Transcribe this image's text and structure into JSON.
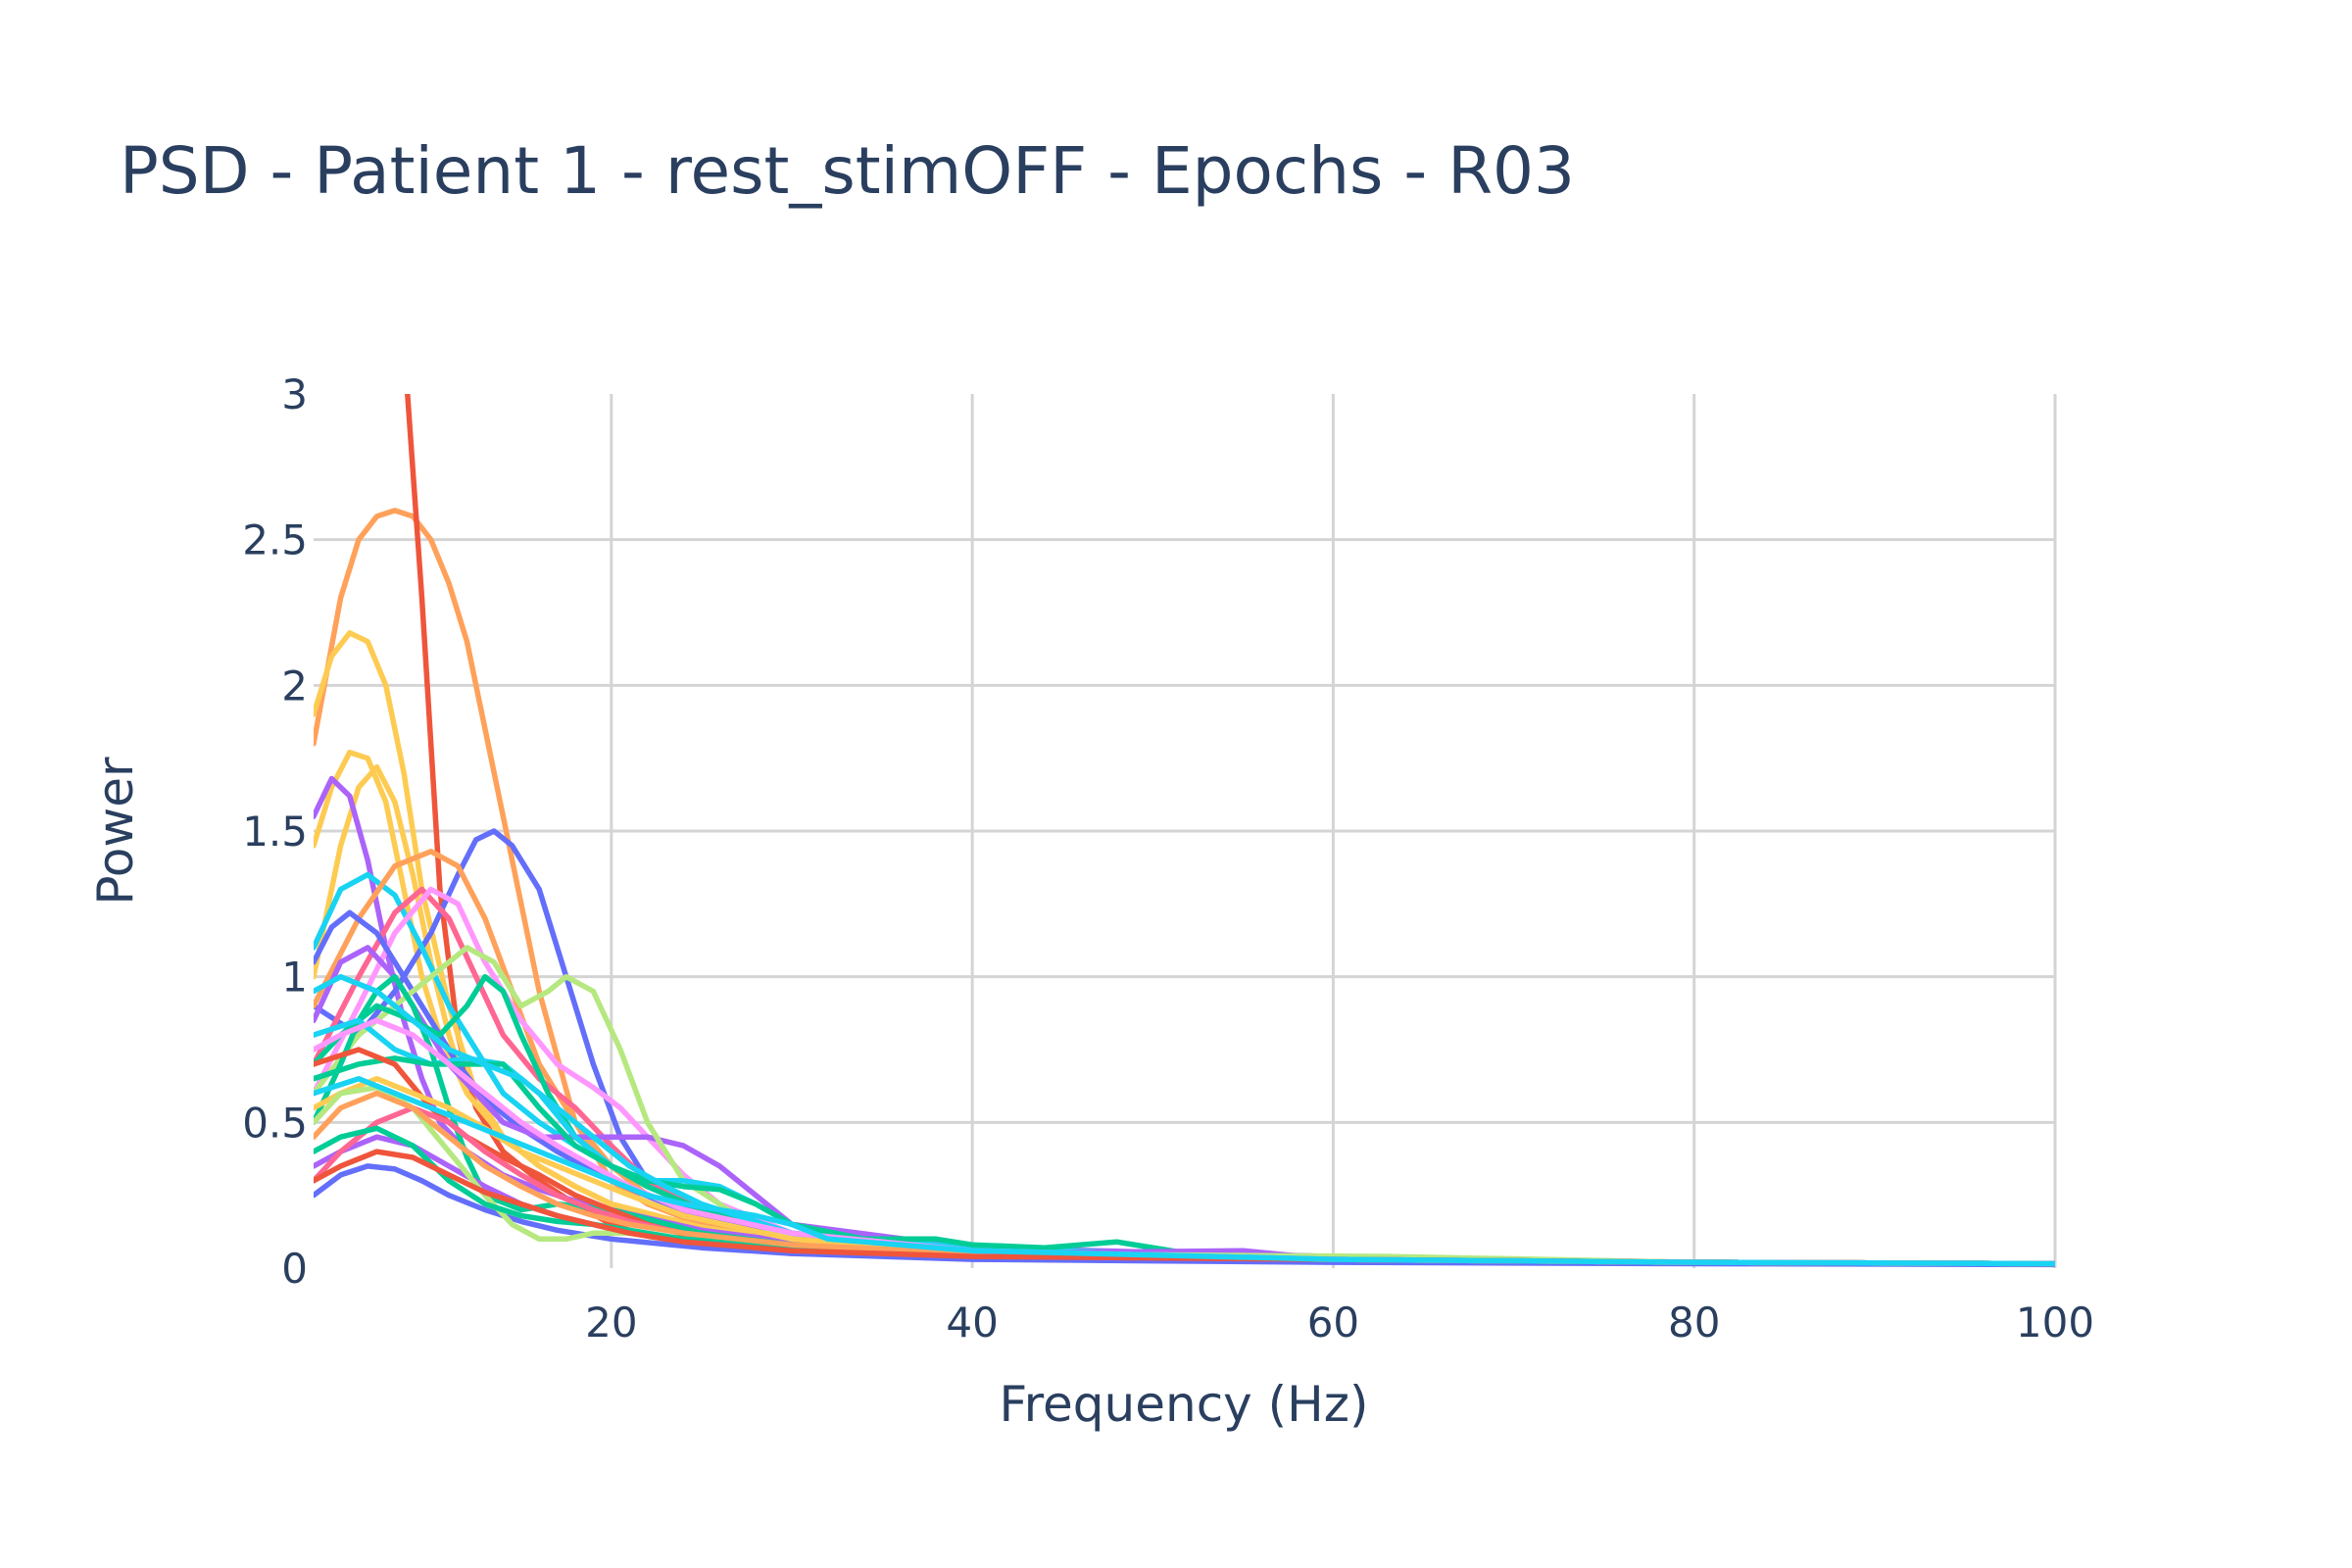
{
  "chart_data": {
    "type": "line",
    "title": "PSD - Patient 1 - rest_stimOFF - Epochs - R03",
    "xlabel": "Frequency (Hz)",
    "ylabel": "Power",
    "xlim": [
      3.5,
      100
    ],
    "ylim": [
      0,
      3
    ],
    "xticks": [
      20,
      40,
      60,
      80,
      100
    ],
    "xtick_labels": [
      "20",
      "40",
      "60",
      "80",
      "100"
    ],
    "yticks": [
      0,
      0.5,
      1,
      1.5,
      2,
      2.5,
      3
    ],
    "ytick_labels": [
      "0",
      "0.5",
      "1",
      "1.5",
      "2",
      "2.5",
      "3"
    ],
    "grid": true,
    "legend": "none",
    "palette": [
      "#636efa",
      "#EF553B",
      "#00cc96",
      "#ab63fa",
      "#FFA15A",
      "#19d3f3",
      "#FF6692",
      "#B6E880",
      "#FF97FF",
      "#FECB52"
    ],
    "series": [
      {
        "color": "#FFA15A",
        "x": [
          3.5,
          5,
          6,
          7,
          8,
          9,
          10,
          11,
          12,
          14,
          16,
          18,
          20,
          22,
          25,
          30,
          40,
          60,
          80,
          100
        ],
        "y": [
          1.8,
          2.3,
          2.5,
          2.58,
          2.6,
          2.58,
          2.5,
          2.35,
          2.15,
          1.55,
          0.95,
          0.5,
          0.3,
          0.22,
          0.15,
          0.09,
          0.05,
          0.03,
          0.02,
          0.015
        ]
      },
      {
        "color": "#EF553B",
        "x": [
          8.7,
          9.5,
          10.5,
          11.5,
          12.5,
          14,
          16,
          18,
          20,
          22,
          25,
          30,
          40,
          60,
          80,
          100
        ],
        "y": [
          3.0,
          2.3,
          1.3,
          0.8,
          0.55,
          0.4,
          0.3,
          0.22,
          0.15,
          0.11,
          0.08,
          0.05,
          0.04,
          0.03,
          0.02,
          0.015
        ]
      },
      {
        "color": "#FECB52",
        "x": [
          3.5,
          4.5,
          5.5,
          6.5,
          7.5,
          8.5,
          9.5,
          11,
          12.5,
          14,
          16,
          18,
          20,
          25,
          30,
          40,
          60,
          80,
          100
        ],
        "y": [
          1.9,
          2.1,
          2.18,
          2.15,
          2.0,
          1.7,
          1.3,
          0.9,
          0.6,
          0.45,
          0.35,
          0.28,
          0.22,
          0.14,
          0.09,
          0.05,
          0.03,
          0.02,
          0.015
        ]
      },
      {
        "color": "#FECB52",
        "x": [
          3.5,
          4.5,
          5.5,
          6.5,
          7.5,
          8.5,
          9.5,
          10.5,
          12,
          14,
          16,
          18,
          20,
          25,
          30,
          40,
          60,
          80,
          100
        ],
        "y": [
          1.45,
          1.65,
          1.77,
          1.75,
          1.6,
          1.3,
          1.0,
          0.8,
          0.6,
          0.45,
          0.35,
          0.28,
          0.22,
          0.14,
          0.09,
          0.05,
          0.03,
          0.02,
          0.015
        ]
      },
      {
        "color": "#FECB52",
        "x": [
          3.5,
          5,
          6,
          7,
          8,
          9,
          10,
          11,
          12,
          14,
          16,
          18,
          20,
          25,
          30,
          40,
          60,
          80,
          100
        ],
        "y": [
          1.0,
          1.45,
          1.65,
          1.72,
          1.6,
          1.35,
          1.05,
          0.8,
          0.6,
          0.45,
          0.35,
          0.28,
          0.22,
          0.14,
          0.09,
          0.05,
          0.03,
          0.02,
          0.015
        ]
      },
      {
        "color": "#ab63fa",
        "x": [
          3.5,
          4.5,
          5.5,
          6.5,
          7.5,
          8.5,
          9.5,
          10.5,
          12,
          14,
          16,
          18,
          20,
          25,
          30,
          40,
          60,
          80,
          100
        ],
        "y": [
          1.55,
          1.68,
          1.62,
          1.4,
          1.1,
          0.85,
          0.65,
          0.5,
          0.4,
          0.32,
          0.27,
          0.23,
          0.2,
          0.13,
          0.09,
          0.05,
          0.03,
          0.02,
          0.015
        ]
      },
      {
        "color": "#636efa",
        "x": [
          3.5,
          6,
          8,
          10,
          11.5,
          12.5,
          13.5,
          14.5,
          16,
          17.5,
          19,
          20.5,
          22,
          25,
          30,
          40,
          60,
          80,
          100
        ],
        "y": [
          0.9,
          0.8,
          0.95,
          1.15,
          1.35,
          1.47,
          1.5,
          1.45,
          1.3,
          1.0,
          0.7,
          0.45,
          0.3,
          0.18,
          0.1,
          0.05,
          0.03,
          0.02,
          0.015
        ]
      },
      {
        "color": "#19d3f3",
        "x": [
          3.5,
          5,
          6.5,
          8,
          9.5,
          11,
          12.5,
          14,
          16,
          18,
          20,
          22,
          25,
          30,
          40,
          60,
          80,
          100
        ],
        "y": [
          1.1,
          1.3,
          1.35,
          1.28,
          1.1,
          0.9,
          0.75,
          0.6,
          0.5,
          0.42,
          0.35,
          0.28,
          0.2,
          0.12,
          0.06,
          0.03,
          0.02,
          0.015
        ]
      },
      {
        "color": "#FFA15A",
        "x": [
          3.5,
          6,
          8,
          10,
          11.5,
          13,
          14.5,
          16,
          18,
          20,
          22,
          25,
          30,
          40,
          60,
          80,
          100
        ],
        "y": [
          0.9,
          1.2,
          1.38,
          1.43,
          1.38,
          1.2,
          0.95,
          0.7,
          0.5,
          0.35,
          0.25,
          0.17,
          0.1,
          0.05,
          0.03,
          0.02,
          0.015
        ]
      },
      {
        "color": "#FF6692",
        "x": [
          3.5,
          6,
          8,
          9.5,
          11,
          12.5,
          14,
          16,
          18,
          20,
          22,
          25,
          30,
          40,
          60,
          80,
          100
        ],
        "y": [
          0.7,
          1.0,
          1.22,
          1.3,
          1.2,
          1.0,
          0.8,
          0.65,
          0.55,
          0.42,
          0.3,
          0.2,
          0.12,
          0.06,
          0.03,
          0.02,
          0.015
        ]
      },
      {
        "color": "#FF97FF",
        "x": [
          3.5,
          6,
          8,
          10,
          11.5,
          13,
          15,
          17,
          19,
          20.5,
          22,
          24,
          26,
          30,
          40,
          60,
          80,
          100
        ],
        "y": [
          0.6,
          0.9,
          1.15,
          1.3,
          1.25,
          1.05,
          0.85,
          0.7,
          0.62,
          0.55,
          0.45,
          0.32,
          0.22,
          0.12,
          0.06,
          0.03,
          0.02,
          0.015
        ]
      },
      {
        "color": "#636efa",
        "x": [
          3.5,
          4.5,
          5.5,
          7,
          8.5,
          10,
          11.5,
          13,
          15,
          17,
          20,
          25,
          30,
          40,
          60,
          80,
          100
        ],
        "y": [
          1.05,
          1.17,
          1.22,
          1.15,
          1.0,
          0.85,
          0.7,
          0.58,
          0.48,
          0.4,
          0.3,
          0.17,
          0.1,
          0.05,
          0.03,
          0.02,
          0.015
        ]
      },
      {
        "color": "#ab63fa",
        "x": [
          3.5,
          5,
          6.5,
          8,
          9.5,
          11,
          12.5,
          14,
          16,
          18,
          20,
          22,
          24,
          26,
          28,
          30,
          40,
          60,
          80,
          100
        ],
        "y": [
          0.85,
          1.05,
          1.1,
          1.0,
          0.85,
          0.7,
          0.6,
          0.5,
          0.45,
          0.45,
          0.45,
          0.45,
          0.42,
          0.35,
          0.25,
          0.15,
          0.07,
          0.04,
          0.02,
          0.015
        ]
      },
      {
        "color": "#B6E880",
        "x": [
          3.5,
          6,
          8,
          10,
          12,
          13.5,
          15,
          16.5,
          17.5,
          19,
          20.5,
          22,
          24,
          27,
          30,
          40,
          60,
          80,
          100
        ],
        "y": [
          0.6,
          0.8,
          0.9,
          1.0,
          1.1,
          1.05,
          0.9,
          0.95,
          1.0,
          0.95,
          0.75,
          0.5,
          0.3,
          0.18,
          0.1,
          0.05,
          0.03,
          0.02,
          0.015
        ]
      },
      {
        "color": "#00cc96",
        "x": [
          3.5,
          5,
          7,
          9,
          10.5,
          12,
          13,
          14,
          15,
          16.5,
          18,
          20,
          22,
          25,
          30,
          40,
          60,
          80,
          100
        ],
        "y": [
          0.7,
          0.8,
          0.9,
          0.85,
          0.8,
          0.9,
          1.0,
          0.95,
          0.8,
          0.6,
          0.45,
          0.35,
          0.28,
          0.2,
          0.12,
          0.06,
          0.03,
          0.02,
          0.015
        ]
      },
      {
        "color": "#00cc96",
        "x": [
          3.5,
          5,
          6,
          7,
          8,
          9,
          10,
          11,
          12,
          13,
          15,
          17,
          20,
          25,
          30,
          40,
          60,
          80,
          100
        ],
        "y": [
          0.5,
          0.7,
          0.85,
          0.95,
          1.0,
          0.9,
          0.75,
          0.55,
          0.38,
          0.25,
          0.2,
          0.22,
          0.2,
          0.12,
          0.08,
          0.04,
          0.03,
          0.02,
          0.015
        ]
      },
      {
        "color": "#19d3f3",
        "x": [
          3.5,
          6,
          8,
          10,
          12,
          14,
          16,
          18,
          20,
          22,
          24,
          26,
          28,
          30,
          34,
          40,
          60,
          80,
          100
        ],
        "y": [
          0.8,
          0.85,
          0.75,
          0.7,
          0.72,
          0.7,
          0.6,
          0.45,
          0.35,
          0.3,
          0.3,
          0.28,
          0.22,
          0.15,
          0.1,
          0.07,
          0.03,
          0.02,
          0.015
        ]
      },
      {
        "color": "#00cc96",
        "x": [
          3.5,
          6,
          8,
          10,
          12,
          14,
          16,
          18,
          20,
          22,
          24,
          26,
          28,
          30,
          34,
          38,
          40,
          44,
          48,
          52,
          60,
          80,
          100
        ],
        "y": [
          0.65,
          0.7,
          0.72,
          0.7,
          0.7,
          0.7,
          0.55,
          0.42,
          0.35,
          0.3,
          0.28,
          0.27,
          0.22,
          0.15,
          0.1,
          0.1,
          0.08,
          0.07,
          0.09,
          0.05,
          0.03,
          0.02,
          0.015
        ]
      },
      {
        "color": "#EF553B",
        "x": [
          3.5,
          6,
          8,
          10,
          12,
          14,
          16,
          18,
          20,
          22,
          25,
          30,
          40,
          60,
          80,
          100
        ],
        "y": [
          0.7,
          0.75,
          0.7,
          0.55,
          0.45,
          0.38,
          0.32,
          0.25,
          0.2,
          0.15,
          0.1,
          0.06,
          0.04,
          0.03,
          0.02,
          0.015
        ]
      },
      {
        "color": "#636efa",
        "x": [
          3.5,
          5,
          6.5,
          8,
          9.5,
          11,
          13,
          15,
          17,
          20,
          25,
          30,
          40,
          60,
          80,
          100
        ],
        "y": [
          0.25,
          0.32,
          0.35,
          0.34,
          0.3,
          0.25,
          0.2,
          0.16,
          0.13,
          0.1,
          0.07,
          0.05,
          0.03,
          0.02,
          0.015,
          0.012
        ]
      },
      {
        "color": "#ab63fa",
        "x": [
          3.5,
          5,
          7,
          9,
          11,
          13,
          15,
          17,
          19,
          21,
          24,
          30,
          40,
          55,
          60,
          80,
          100
        ],
        "y": [
          0.35,
          0.4,
          0.45,
          0.42,
          0.35,
          0.28,
          0.22,
          0.18,
          0.15,
          0.12,
          0.1,
          0.07,
          0.05,
          0.06,
          0.03,
          0.02,
          0.015
        ]
      },
      {
        "color": "#FF6692",
        "x": [
          3.5,
          5,
          7,
          9,
          11,
          13,
          15,
          17,
          19,
          21,
          24,
          30,
          40,
          60,
          74,
          80,
          100
        ],
        "y": [
          0.3,
          0.4,
          0.5,
          0.55,
          0.5,
          0.4,
          0.32,
          0.25,
          0.2,
          0.16,
          0.12,
          0.08,
          0.05,
          0.03,
          0.025,
          0.02,
          0.015
        ]
      },
      {
        "color": "#FECB52",
        "x": [
          3.5,
          5,
          7,
          9,
          11,
          13,
          15,
          17,
          19,
          21,
          24,
          30,
          40,
          60,
          80,
          100
        ],
        "y": [
          0.55,
          0.6,
          0.65,
          0.6,
          0.55,
          0.48,
          0.4,
          0.35,
          0.3,
          0.25,
          0.18,
          0.1,
          0.05,
          0.03,
          0.02,
          0.015
        ]
      },
      {
        "color": "#B6E880",
        "x": [
          3.5,
          5,
          7,
          9,
          11,
          13,
          14.5,
          16,
          17.5,
          19,
          21,
          24,
          30,
          40,
          63,
          80,
          100
        ],
        "y": [
          0.5,
          0.6,
          0.62,
          0.55,
          0.4,
          0.25,
          0.15,
          0.1,
          0.1,
          0.12,
          0.12,
          0.1,
          0.07,
          0.05,
          0.04,
          0.02,
          0.015
        ]
      },
      {
        "color": "#00cc96",
        "x": [
          3.5,
          5,
          7,
          9,
          11,
          13,
          15,
          17,
          19,
          21,
          24,
          30,
          40,
          60,
          80,
          100
        ],
        "y": [
          0.4,
          0.45,
          0.48,
          0.42,
          0.3,
          0.22,
          0.18,
          0.16,
          0.15,
          0.13,
          0.1,
          0.07,
          0.05,
          0.03,
          0.02,
          0.015
        ]
      },
      {
        "color": "#FFA15A",
        "x": [
          3.5,
          5,
          7,
          9,
          11,
          13,
          15,
          17,
          19,
          21,
          24,
          30,
          40,
          60,
          80,
          100
        ],
        "y": [
          0.45,
          0.55,
          0.6,
          0.55,
          0.45,
          0.35,
          0.28,
          0.22,
          0.18,
          0.15,
          0.12,
          0.08,
          0.05,
          0.03,
          0.02,
          0.015
        ]
      },
      {
        "color": "#19d3f3",
        "x": [
          3.5,
          5,
          7,
          9,
          11,
          13,
          15,
          17,
          19,
          21,
          23,
          25,
          27,
          30,
          40,
          60,
          80,
          100
        ],
        "y": [
          0.95,
          1.0,
          0.95,
          0.85,
          0.75,
          0.7,
          0.65,
          0.55,
          0.45,
          0.35,
          0.28,
          0.22,
          0.18,
          0.12,
          0.06,
          0.03,
          0.02,
          0.015
        ]
      },
      {
        "color": "#FF97FF",
        "x": [
          3.5,
          5,
          7,
          9,
          11,
          13,
          15,
          17,
          19,
          21,
          24,
          30,
          40,
          60,
          80,
          100
        ],
        "y": [
          0.75,
          0.8,
          0.85,
          0.8,
          0.7,
          0.6,
          0.5,
          0.42,
          0.35,
          0.28,
          0.2,
          0.12,
          0.06,
          0.03,
          0.02,
          0.015
        ]
      },
      {
        "color": "#EF553B",
        "x": [
          3.5,
          5,
          7,
          9,
          11,
          13,
          15,
          17,
          19,
          21,
          24,
          30,
          40,
          60,
          80,
          100
        ],
        "y": [
          0.3,
          0.35,
          0.4,
          0.38,
          0.32,
          0.26,
          0.22,
          0.18,
          0.15,
          0.12,
          0.09,
          0.06,
          0.04,
          0.03,
          0.02,
          0.015
        ]
      },
      {
        "color": "#19d3f3",
        "x": [
          3.5,
          6,
          8,
          10,
          12,
          14,
          16,
          18,
          20,
          22,
          24,
          26,
          28,
          30,
          32,
          36,
          40,
          60,
          80,
          100
        ],
        "y": [
          0.6,
          0.65,
          0.6,
          0.55,
          0.5,
          0.45,
          0.4,
          0.35,
          0.3,
          0.25,
          0.22,
          0.2,
          0.18,
          0.15,
          0.1,
          0.08,
          0.06,
          0.03,
          0.02,
          0.015
        ]
      }
    ]
  }
}
